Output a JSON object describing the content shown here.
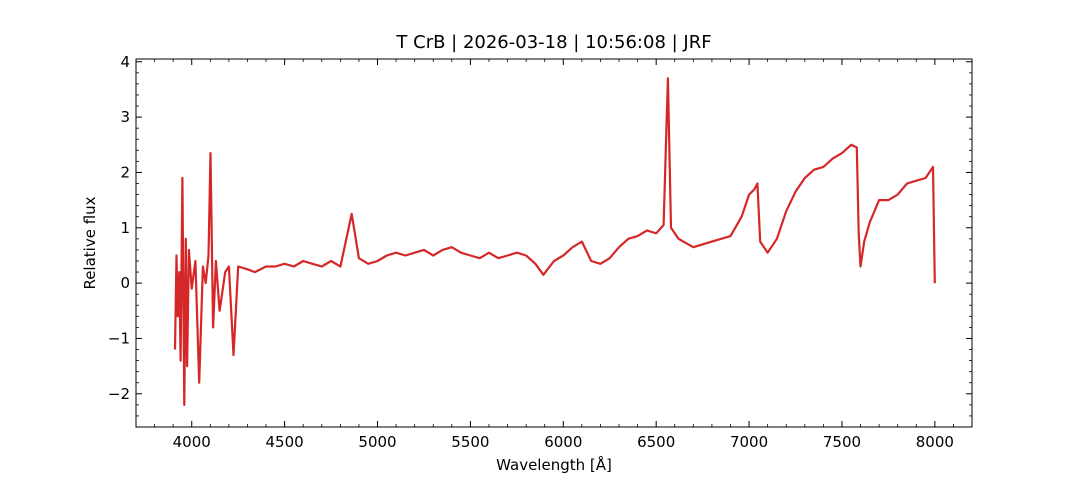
{
  "chart_data": {
    "type": "line",
    "title": "T CrB | 2026-03-18 | 10:56:08 | JRF",
    "xlabel": "Wavelength [Å]",
    "ylabel": "Relative flux",
    "xlim": [
      3700,
      8200
    ],
    "ylim": [
      -2.6,
      4.05
    ],
    "xticks": [
      4000,
      4500,
      5000,
      5500,
      6000,
      6500,
      7000,
      7500,
      8000
    ],
    "xtick_labels": [
      "4000",
      "4500",
      "5000",
      "5500",
      "6000",
      "6500",
      "7000",
      "7500",
      "8000"
    ],
    "yticks": [
      -2,
      -1,
      0,
      1,
      2,
      3,
      4
    ],
    "ytick_labels": [
      "−2",
      "−1",
      "0",
      "1",
      "2",
      "3",
      "4"
    ],
    "grid": false,
    "series": [
      {
        "color": "#d62728",
        "x": [
          3910,
          3918,
          3925,
          3933,
          3940,
          3950,
          3960,
          3968,
          3975,
          3985,
          4000,
          4020,
          4040,
          4060,
          4075,
          4090,
          4101,
          4115,
          4130,
          4150,
          4180,
          4200,
          4225,
          4250,
          4300,
          4340,
          4400,
          4450,
          4500,
          4550,
          4600,
          4650,
          4700,
          4750,
          4800,
          4861,
          4900,
          4950,
          5000,
          5050,
          5100,
          5150,
          5200,
          5250,
          5300,
          5350,
          5400,
          5450,
          5500,
          5550,
          5600,
          5650,
          5700,
          5750,
          5800,
          5850,
          5893,
          5950,
          6000,
          6050,
          6100,
          6150,
          6200,
          6250,
          6300,
          6350,
          6400,
          6450,
          6500,
          6540,
          6563,
          6580,
          6620,
          6700,
          6800,
          6900,
          6960,
          7000,
          7030,
          7045,
          7060,
          7100,
          7150,
          7200,
          7250,
          7300,
          7350,
          7400,
          7450,
          7500,
          7550,
          7580,
          7590,
          7600,
          7620,
          7650,
          7700,
          7750,
          7800,
          7850,
          7900,
          7950,
          7990,
          8000
        ],
        "y": [
          -1.2,
          0.5,
          -0.6,
          0.2,
          -1.4,
          1.9,
          -2.2,
          0.8,
          -1.5,
          0.6,
          -0.1,
          0.4,
          -1.8,
          0.3,
          0.0,
          0.5,
          2.35,
          -0.8,
          0.4,
          -0.5,
          0.2,
          0.3,
          -1.3,
          0.3,
          0.25,
          0.2,
          0.3,
          0.3,
          0.35,
          0.3,
          0.4,
          0.35,
          0.3,
          0.4,
          0.3,
          1.25,
          0.45,
          0.35,
          0.4,
          0.5,
          0.55,
          0.5,
          0.55,
          0.6,
          0.5,
          0.6,
          0.65,
          0.55,
          0.5,
          0.45,
          0.55,
          0.45,
          0.5,
          0.55,
          0.5,
          0.35,
          0.15,
          0.4,
          0.5,
          0.65,
          0.75,
          0.4,
          0.35,
          0.45,
          0.65,
          0.8,
          0.85,
          0.95,
          0.9,
          1.05,
          3.7,
          1.0,
          0.8,
          0.65,
          0.75,
          0.85,
          1.2,
          1.6,
          1.7,
          1.8,
          0.75,
          0.55,
          0.8,
          1.3,
          1.65,
          1.9,
          2.05,
          2.1,
          2.25,
          2.35,
          2.5,
          2.45,
          0.9,
          0.3,
          0.75,
          1.1,
          1.5,
          1.5,
          1.6,
          1.8,
          1.85,
          1.9,
          2.1,
          0.0
        ]
      }
    ]
  }
}
